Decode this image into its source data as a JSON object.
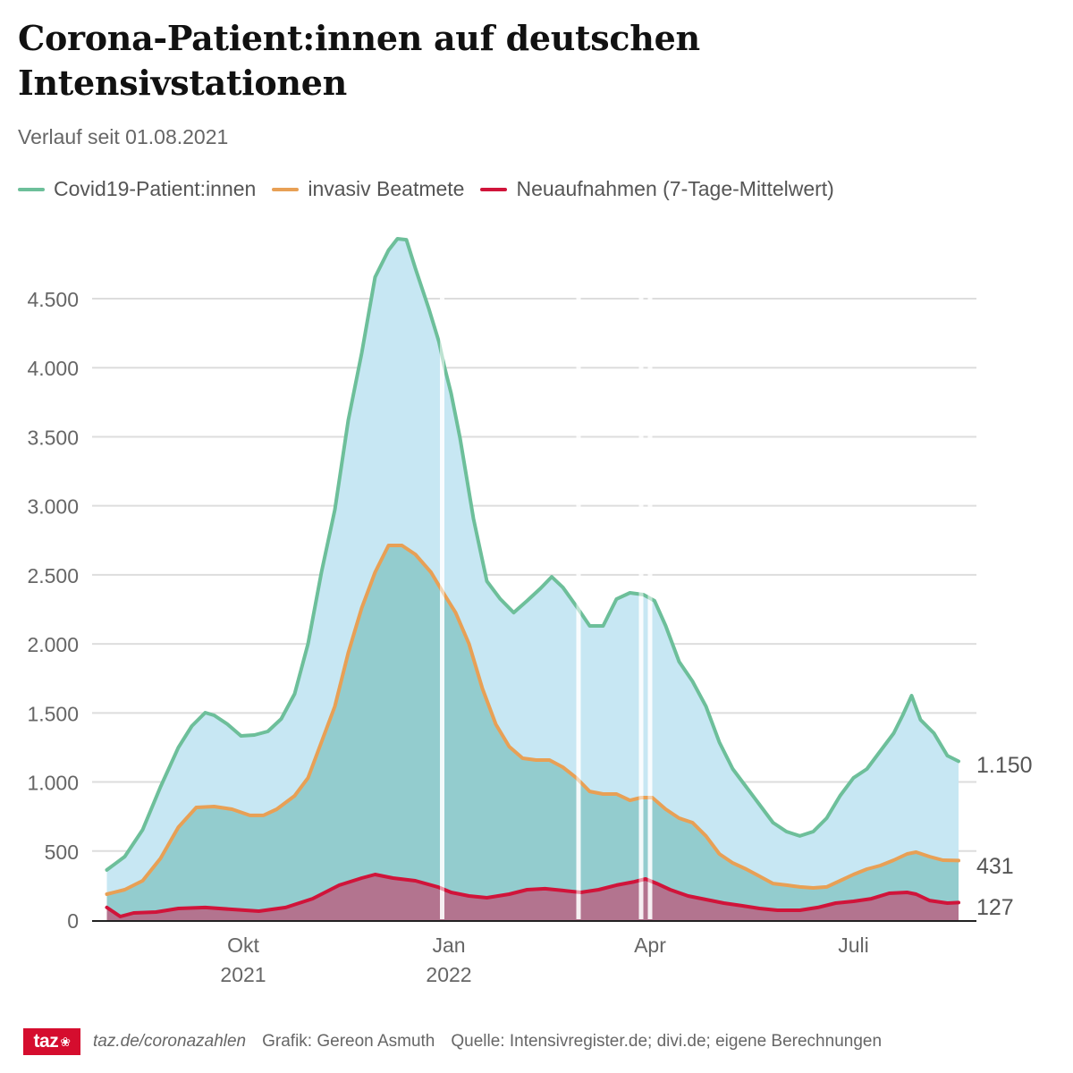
{
  "header": {
    "title_line1": "Corona-Patient:innen auf deutschen",
    "title_line2": "Intensivstationen",
    "subtitle": "Verlauf seit 01.08.2021"
  },
  "footer": {
    "logo_text": "taz",
    "logo_icon": "paw-icon",
    "url": "taz.de/coronazahlen",
    "credit": "Grafik: Gereon Asmuth",
    "source": "Quelle: Intensivregister.de; divi.de; eigene Berechnungen"
  },
  "chart_data": {
    "type": "area",
    "title": "Corona-Patient:innen auf deutschen Intensivstationen",
    "subtitle": "Verlauf seit 01.08.2021",
    "x_unit": "days since 2021-08-01",
    "xlim": [
      0,
      381
    ],
    "ylim": [
      0,
      5000
    ],
    "grid": true,
    "legend_position": "top-left",
    "y_ticks": [
      {
        "value": 0,
        "label": "0"
      },
      {
        "value": 500,
        "label": "500"
      },
      {
        "value": 1000,
        "label": "1.000"
      },
      {
        "value": 1500,
        "label": "1.500"
      },
      {
        "value": 2000,
        "label": "2.000"
      },
      {
        "value": 2500,
        "label": "2.500"
      },
      {
        "value": 3000,
        "label": "3.000"
      },
      {
        "value": 3500,
        "label": "3.500"
      },
      {
        "value": 4000,
        "label": "4.000"
      },
      {
        "value": 4500,
        "label": "4.500"
      }
    ],
    "x_ticks": [
      {
        "day": 61,
        "label": "Okt",
        "sublabel": "2021"
      },
      {
        "day": 153,
        "label": "Jan",
        "sublabel": "2022"
      },
      {
        "day": 243,
        "label": "Apr",
        "sublabel": ""
      },
      {
        "day": 334,
        "label": "Juli",
        "sublabel": ""
      }
    ],
    "gaps": [
      150,
      211,
      239,
      243
    ],
    "series": [
      {
        "name": "Covid19-Patient:innen",
        "color": "#6dbf9a",
        "fill": "#c7e7f3",
        "end_label": "1.150",
        "x": [
          0,
          8,
          16,
          24,
          32,
          38,
          44,
          48,
          54,
          60,
          66,
          72,
          78,
          84,
          90,
          96,
          102,
          108,
          114,
          120,
          126,
          130,
          134,
          138,
          144,
          148.5,
          151,
          154,
          158,
          164,
          170,
          176,
          182,
          188,
          194,
          199,
          204,
          210,
          216,
          222,
          228,
          234,
          240,
          245,
          250,
          256,
          262,
          268,
          274,
          280,
          286,
          292,
          298,
          304,
          310,
          316,
          322,
          328,
          334,
          340,
          346,
          352,
          356,
          360,
          364,
          370,
          376,
          381
        ],
        "values": [
          363,
          460,
          654,
          965,
          1250,
          1405,
          1502,
          1483,
          1418,
          1334,
          1340,
          1366,
          1457,
          1638,
          2001,
          2519,
          2972,
          3620,
          4105,
          4656,
          4850,
          4934,
          4927,
          4720,
          4429,
          4190,
          4008,
          3814,
          3490,
          2907,
          2454,
          2325,
          2227,
          2312,
          2402,
          2486,
          2409,
          2273,
          2130,
          2130,
          2325,
          2370,
          2357,
          2312,
          2130,
          1871,
          1729,
          1548,
          1288,
          1094,
          965,
          835,
          706,
          641,
          609,
          641,
          738,
          900,
          1030,
          1094,
          1224,
          1353,
          1483,
          1625,
          1450,
          1353,
          1191,
          1150
        ]
      },
      {
        "name": "invasiv Beatmete",
        "color": "#e8a055",
        "fill": "#8ecacb",
        "end_label": "431",
        "x": [
          0,
          8,
          16,
          24,
          32,
          40,
          48,
          56,
          64,
          70,
          76,
          84,
          90,
          96,
          102,
          108,
          114,
          120,
          126,
          132,
          138,
          145,
          151,
          156,
          162,
          168,
          174,
          180,
          186,
          192,
          198,
          204,
          210,
          216,
          222,
          228,
          234,
          239,
          244,
          250,
          256,
          262,
          268,
          274,
          280,
          286,
          292,
          298,
          304,
          310,
          316,
          322,
          328,
          334,
          340,
          346,
          352,
          358,
          362,
          368,
          374,
          381
        ],
        "values": [
          188,
          220,
          285,
          447,
          673,
          816,
          822,
          803,
          758,
          758,
          803,
          900,
          1030,
          1289,
          1548,
          1936,
          2260,
          2519,
          2713,
          2713,
          2648,
          2519,
          2357,
          2227,
          2001,
          1677,
          1418,
          1256,
          1172,
          1159,
          1159,
          1107,
          1030,
          932,
          913,
          913,
          867,
          887,
          887,
          803,
          738,
          706,
          609,
          479,
          414,
          369,
          317,
          265,
          253,
          240,
          233,
          240,
          285,
          330,
          369,
          395,
          434,
          479,
          492,
          460,
          434,
          431
        ]
      },
      {
        "name": "Neuaufnahmen (7-Tage-Mittelwert)",
        "color": "#d0143a",
        "fill": "#b56d8a",
        "end_label": "127",
        "x": [
          0,
          6,
          12,
          22,
          32,
          44,
          56,
          68,
          80,
          92,
          104,
          114,
          120,
          128,
          138,
          148,
          154,
          162,
          170,
          180,
          188,
          196,
          204,
          212,
          220,
          228,
          236,
          241,
          246,
          252,
          260,
          268,
          276,
          284,
          292,
          300,
          310,
          318,
          326,
          334,
          342,
          350,
          358,
          362,
          368,
          376,
          381
        ],
        "values": [
          91,
          26,
          52,
          58,
          84,
          91,
          78,
          65,
          91,
          155,
          253,
          304,
          330,
          304,
          285,
          240,
          201,
          175,
          162,
          188,
          220,
          227,
          214,
          201,
          220,
          253,
          278,
          298,
          265,
          220,
          175,
          149,
          123,
          104,
          84,
          71,
          71,
          91,
          123,
          136,
          155,
          194,
          201,
          188,
          142,
          123,
          127
        ]
      }
    ]
  }
}
